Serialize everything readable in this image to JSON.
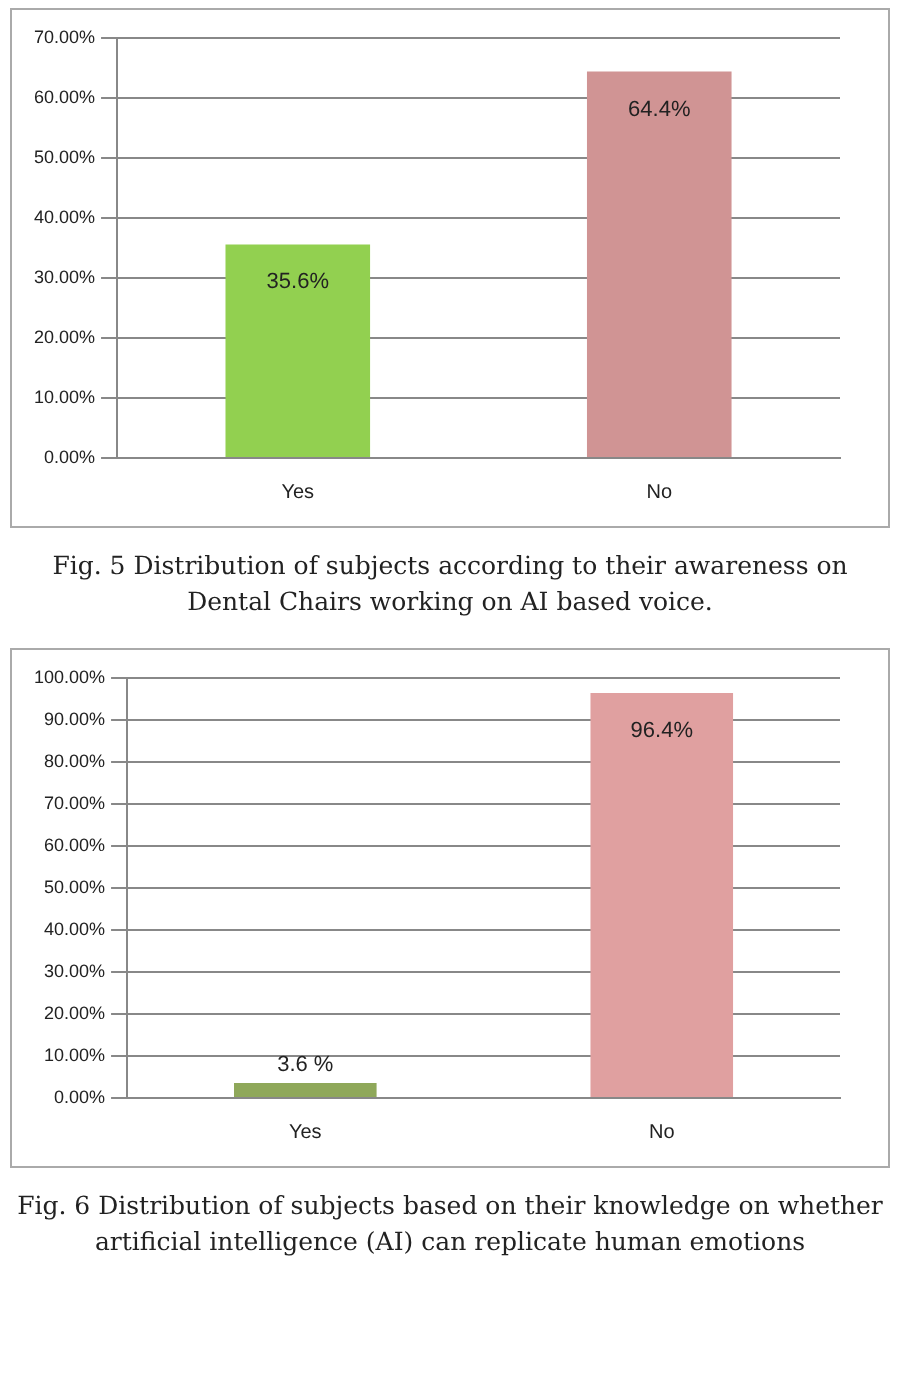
{
  "chart_data": [
    {
      "type": "bar",
      "categories": [
        "Yes",
        "No"
      ],
      "values": [
        35.6,
        64.4
      ],
      "colors": [
        "#92d050",
        "#d09494"
      ],
      "value_labels": [
        "35.6%",
        "64.4%"
      ],
      "ylim": [
        0,
        70
      ],
      "yticks": [
        {
          "value": 0,
          "label": "0.00%"
        },
        {
          "value": 10,
          "label": "10.00%"
        },
        {
          "value": 20,
          "label": "20.00%"
        },
        {
          "value": 30,
          "label": "30.00%"
        },
        {
          "value": 40,
          "label": "40.00%"
        },
        {
          "value": 50,
          "label": "50.00%"
        },
        {
          "value": 60,
          "label": "60.00%"
        },
        {
          "value": 70,
          "label": "70.00%"
        }
      ],
      "grid": "y",
      "annotations": [
        "Fig. 5 Distribution of subjects according to their awareness on Dental Chairs working on AI based voice."
      ]
    },
    {
      "type": "bar",
      "categories": [
        "Yes",
        "No"
      ],
      "values": [
        3.6,
        96.4
      ],
      "colors": [
        "#8fa85a",
        "#e0a0a0"
      ],
      "value_labels": [
        "3.6 %",
        "96.4%"
      ],
      "ylim": [
        0,
        100
      ],
      "yticks": [
        {
          "value": 0,
          "label": "0.00%"
        },
        {
          "value": 10,
          "label": "10.00%"
        },
        {
          "value": 20,
          "label": "20.00%"
        },
        {
          "value": 30,
          "label": "30.00%"
        },
        {
          "value": 40,
          "label": "40.00%"
        },
        {
          "value": 50,
          "label": "50.00%"
        },
        {
          "value": 60,
          "label": "60.00%"
        },
        {
          "value": 70,
          "label": "70.00%"
        },
        {
          "value": 80,
          "label": "80.00%"
        },
        {
          "value": 90,
          "label": "90.00%"
        },
        {
          "value": 100,
          "label": "100.00%"
        }
      ],
      "grid": "y",
      "annotations": [
        "Fig. 6 Distribution of subjects based on their knowledge on whether artificial intelligence (AI) can replicate human emotions"
      ]
    }
  ]
}
